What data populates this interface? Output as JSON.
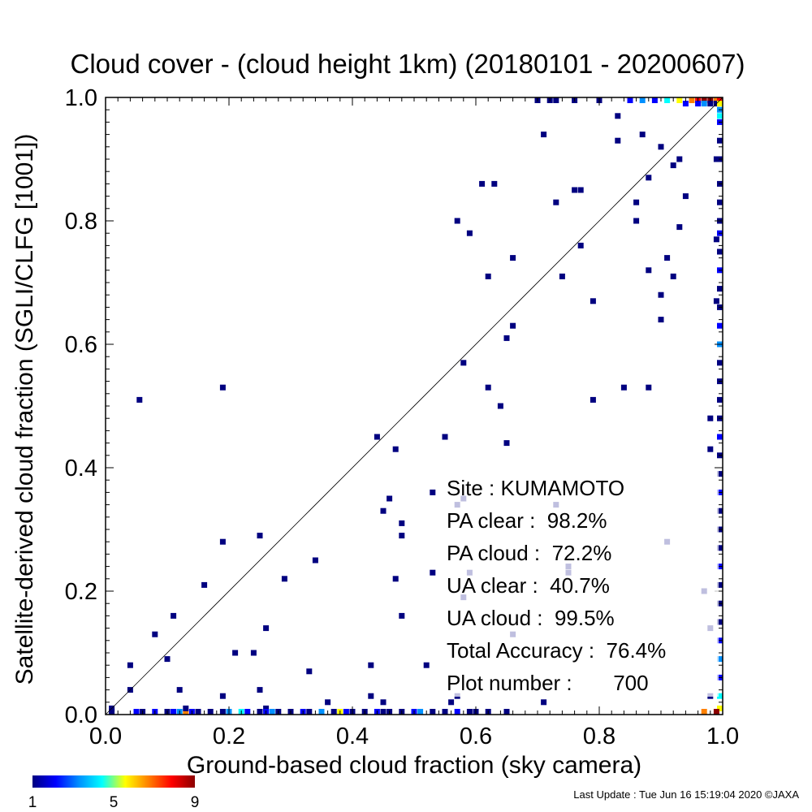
{
  "chart_data": {
    "type": "heatmap",
    "title": "Cloud cover - (cloud height 1km)  (20180101 - 20200607)",
    "xlabel": "Ground-based cloud fraction (sky camera)",
    "ylabel": "Satellite-derived cloud fraction (SGLI/CLFG [1001])",
    "xlim": [
      0.0,
      1.0
    ],
    "ylim": [
      0.0,
      1.0
    ],
    "x_ticks": [
      "0.0",
      "0.2",
      "0.4",
      "0.6",
      "0.8",
      "1.0"
    ],
    "y_ticks": [
      "0.0",
      "0.2",
      "0.4",
      "0.6",
      "0.8",
      "1.0"
    ],
    "grid": false,
    "reference_line": "1:1 diagonal",
    "colorbar": {
      "min": 1,
      "max": 9,
      "tick_labels": [
        "1",
        "5",
        "9"
      ],
      "colors": [
        "#000080",
        "#0000ff",
        "#0090ff",
        "#00ffff",
        "#ffff00",
        "#ff8000",
        "#ff0000",
        "#8b0000"
      ]
    },
    "cell_size": 0.01,
    "points": [
      [
        0.055,
        0.51,
        1
      ],
      [
        0.19,
        0.53,
        1
      ],
      [
        0.19,
        0.28,
        1
      ],
      [
        0.25,
        0.29,
        1
      ],
      [
        0.34,
        0.25,
        1
      ],
      [
        0.29,
        0.22,
        1
      ],
      [
        0.16,
        0.21,
        1
      ],
      [
        0.11,
        0.16,
        1
      ],
      [
        0.08,
        0.13,
        1
      ],
      [
        0.26,
        0.14,
        1
      ],
      [
        0.21,
        0.1,
        1
      ],
      [
        0.24,
        0.1,
        1
      ],
      [
        0.1,
        0.09,
        1
      ],
      [
        0.04,
        0.08,
        1
      ],
      [
        0.33,
        0.07,
        1
      ],
      [
        0.43,
        0.08,
        1
      ],
      [
        0.04,
        0.04,
        1
      ],
      [
        0.12,
        0.04,
        1
      ],
      [
        0.19,
        0.03,
        1
      ],
      [
        0.25,
        0.04,
        1
      ],
      [
        0.36,
        0.02,
        1
      ],
      [
        0.43,
        0.03,
        1
      ],
      [
        0.45,
        0.02,
        1
      ],
      [
        0.26,
        0.01,
        1
      ],
      [
        0.44,
        0.45,
        1
      ],
      [
        0.47,
        0.43,
        1
      ],
      [
        0.46,
        0.35,
        1
      ],
      [
        0.45,
        0.33,
        1
      ],
      [
        0.48,
        0.31,
        1
      ],
      [
        0.48,
        0.29,
        1
      ],
      [
        0.47,
        0.22,
        1
      ],
      [
        0.48,
        0.16,
        1
      ],
      [
        0.53,
        0.36,
        1
      ],
      [
        0.53,
        0.23,
        1
      ],
      [
        0.52,
        0.08,
        1
      ],
      [
        0.55,
        0.45,
        1
      ],
      [
        0.57,
        0.34,
        1
      ],
      [
        0.58,
        0.35,
        1
      ],
      [
        0.58,
        0.19,
        1
      ],
      [
        0.59,
        0.23,
        1
      ],
      [
        0.57,
        0.03,
        1
      ],
      [
        0.56,
        0.02,
        1
      ],
      [
        0.57,
        0.8,
        1
      ],
      [
        0.59,
        0.78,
        1
      ],
      [
        0.61,
        0.86,
        1
      ],
      [
        0.63,
        0.86,
        1
      ],
      [
        0.62,
        0.71,
        1
      ],
      [
        0.66,
        0.74,
        1
      ],
      [
        0.66,
        0.63,
        1
      ],
      [
        0.65,
        0.61,
        1
      ],
      [
        0.58,
        0.57,
        1
      ],
      [
        0.62,
        0.53,
        1
      ],
      [
        0.64,
        0.5,
        1
      ],
      [
        0.65,
        0.44,
        1
      ],
      [
        0.66,
        0.13,
        1
      ],
      [
        0.71,
        0.94,
        1
      ],
      [
        0.73,
        0.83,
        1
      ],
      [
        0.76,
        0.85,
        1
      ],
      [
        0.77,
        0.85,
        1
      ],
      [
        0.77,
        0.76,
        1
      ],
      [
        0.74,
        0.71,
        1
      ],
      [
        0.79,
        0.67,
        1
      ],
      [
        0.79,
        0.51,
        1
      ],
      [
        0.73,
        0.34,
        1
      ],
      [
        0.75,
        0.24,
        1
      ],
      [
        0.75,
        0.23,
        1
      ],
      [
        0.71,
        0.02,
        1
      ],
      [
        0.83,
        0.93,
        1
      ],
      [
        0.83,
        0.97,
        1
      ],
      [
        0.87,
        0.94,
        1
      ],
      [
        0.86,
        0.83,
        1
      ],
      [
        0.86,
        0.8,
        1
      ],
      [
        0.88,
        0.87,
        1
      ],
      [
        0.88,
        0.72,
        1
      ],
      [
        0.84,
        0.53,
        1
      ],
      [
        0.88,
        0.53,
        1
      ],
      [
        0.9,
        0.92,
        1
      ],
      [
        0.92,
        0.89,
        1
      ],
      [
        0.93,
        0.9,
        1
      ],
      [
        0.94,
        0.84,
        1
      ],
      [
        0.93,
        0.79,
        1
      ],
      [
        0.91,
        0.74,
        1
      ],
      [
        0.92,
        0.71,
        1
      ],
      [
        0.9,
        0.68,
        1
      ],
      [
        0.9,
        0.64,
        1
      ],
      [
        0.91,
        0.28,
        1
      ],
      [
        0.97,
        0.2,
        1
      ],
      [
        0.98,
        0.14,
        1
      ],
      [
        0.98,
        0.48,
        1
      ],
      [
        0.98,
        0.43,
        1
      ],
      [
        0.99,
        0.9,
        1
      ],
      [
        0.99,
        0.77,
        1
      ],
      [
        0.99,
        0.67,
        1
      ],
      [
        0.7,
        1.0,
        1
      ],
      [
        0.72,
        1.0,
        1
      ],
      [
        0.73,
        1.0,
        1
      ],
      [
        0.76,
        1.0,
        1
      ],
      [
        0.8,
        1.0,
        1
      ],
      [
        0.85,
        1.0,
        2
      ],
      [
        0.87,
        1.0,
        3
      ],
      [
        0.89,
        1.0,
        2
      ],
      [
        0.91,
        1.0,
        4
      ],
      [
        0.93,
        1.0,
        6
      ],
      [
        0.95,
        1.0,
        7
      ],
      [
        0.96,
        1.0,
        8
      ],
      [
        0.97,
        1.0,
        9
      ],
      [
        0.98,
        1.0,
        9
      ],
      [
        0.99,
        1.0,
        7
      ],
      [
        0.94,
        0.99,
        2
      ],
      [
        0.96,
        0.99,
        2
      ],
      [
        0.97,
        0.99,
        3
      ],
      [
        0.98,
        0.99,
        1
      ],
      [
        0.99,
        0.99,
        1
      ],
      [
        1.0,
        1.0,
        8
      ],
      [
        1.0,
        0.99,
        5
      ],
      [
        1.0,
        0.98,
        3
      ],
      [
        1.0,
        0.97,
        4
      ],
      [
        1.0,
        0.96,
        2
      ],
      [
        1.0,
        0.93,
        1
      ],
      [
        1.0,
        0.9,
        1
      ],
      [
        1.0,
        0.86,
        1
      ],
      [
        1.0,
        0.83,
        1
      ],
      [
        1.0,
        0.8,
        1
      ],
      [
        1.0,
        0.78,
        2
      ],
      [
        1.0,
        0.75,
        1
      ],
      [
        1.0,
        0.72,
        2
      ],
      [
        1.0,
        0.69,
        1
      ],
      [
        1.0,
        0.66,
        1
      ],
      [
        1.0,
        0.63,
        2
      ],
      [
        1.0,
        0.6,
        3
      ],
      [
        1.0,
        0.57,
        1
      ],
      [
        1.0,
        0.54,
        1
      ],
      [
        1.0,
        0.51,
        1
      ],
      [
        1.0,
        0.48,
        1
      ],
      [
        1.0,
        0.45,
        2
      ],
      [
        1.0,
        0.42,
        1
      ],
      [
        1.0,
        0.39,
        1
      ],
      [
        1.0,
        0.36,
        2
      ],
      [
        1.0,
        0.33,
        1
      ],
      [
        1.0,
        0.3,
        1
      ],
      [
        1.0,
        0.27,
        1
      ],
      [
        1.0,
        0.24,
        2
      ],
      [
        1.0,
        0.21,
        1
      ],
      [
        1.0,
        0.18,
        1
      ],
      [
        1.0,
        0.15,
        1
      ],
      [
        1.0,
        0.12,
        2
      ],
      [
        1.0,
        0.09,
        3
      ],
      [
        1.0,
        0.06,
        2
      ],
      [
        1.0,
        0.03,
        4
      ],
      [
        1.0,
        0.01,
        6
      ],
      [
        0.99,
        0.0,
        9
      ],
      [
        0.97,
        0.0,
        7
      ],
      [
        0.98,
        0.03,
        1
      ],
      [
        0.01,
        0.0,
        1
      ],
      [
        0.05,
        0.0,
        2
      ],
      [
        0.06,
        0.0,
        1
      ],
      [
        0.08,
        0.0,
        2
      ],
      [
        0.1,
        0.0,
        1
      ],
      [
        0.11,
        0.0,
        2
      ],
      [
        0.12,
        0.0,
        3
      ],
      [
        0.13,
        0.0,
        7
      ],
      [
        0.14,
        0.0,
        2
      ],
      [
        0.15,
        0.0,
        1
      ],
      [
        0.17,
        0.0,
        1
      ],
      [
        0.19,
        0.0,
        1
      ],
      [
        0.2,
        0.0,
        3
      ],
      [
        0.22,
        0.0,
        4
      ],
      [
        0.23,
        0.0,
        2
      ],
      [
        0.25,
        0.0,
        1
      ],
      [
        0.26,
        0.0,
        2
      ],
      [
        0.27,
        0.0,
        3
      ],
      [
        0.28,
        0.0,
        1
      ],
      [
        0.3,
        0.0,
        1
      ],
      [
        0.32,
        0.0,
        2
      ],
      [
        0.33,
        0.0,
        1
      ],
      [
        0.35,
        0.0,
        3
      ],
      [
        0.37,
        0.0,
        1
      ],
      [
        0.38,
        0.0,
        6
      ],
      [
        0.39,
        0.0,
        2
      ],
      [
        0.4,
        0.0,
        1
      ],
      [
        0.42,
        0.0,
        1
      ],
      [
        0.44,
        0.0,
        2
      ],
      [
        0.45,
        0.0,
        1
      ],
      [
        0.46,
        0.0,
        1
      ],
      [
        0.48,
        0.0,
        1
      ],
      [
        0.5,
        0.0,
        2
      ],
      [
        0.51,
        0.0,
        3
      ],
      [
        0.53,
        0.0,
        1
      ],
      [
        0.55,
        0.0,
        1
      ],
      [
        0.57,
        0.0,
        2
      ],
      [
        0.59,
        0.0,
        1
      ],
      [
        0.6,
        0.0,
        1
      ],
      [
        0.62,
        0.0,
        1
      ],
      [
        0.65,
        0.0,
        1
      ],
      [
        0.01,
        0.01,
        1
      ],
      [
        0.13,
        0.01,
        1
      ]
    ],
    "annotations": [
      "Site : KUMAMOTO",
      "PA clear :  98.2%",
      "PA cloud :  72.2%",
      "UA clear :  40.7%",
      "UA cloud :  99.5%",
      "Total Accuracy :  76.4%",
      "Plot number :       700"
    ]
  },
  "footer": "Last Update : Tue Jun 16 15:19:04 2020  ©JAXA"
}
